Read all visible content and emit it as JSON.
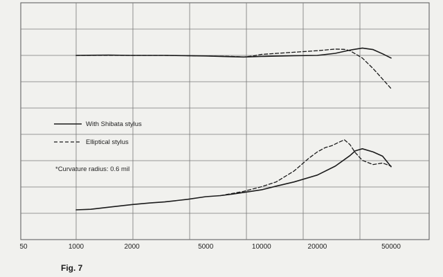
{
  "chart_data": {
    "type": "line",
    "x_scale": "log",
    "xlim": [
      1000,
      50000
    ],
    "grid": true,
    "legend_position": "left",
    "x_tick_labels": [
      {
        "value": 1000,
        "label": "1000"
      },
      {
        "value": 2000,
        "label": "2000"
      },
      {
        "value": 5000,
        "label": "5000"
      },
      {
        "value": 10000,
        "label": "10000"
      },
      {
        "value": 20000,
        "label": "20000"
      },
      {
        "value": 50000,
        "label": "50000"
      }
    ],
    "stray_tick_label": "50",
    "annotation": "*Curvature radius: 0.6 mil",
    "caption": "Fig. 7",
    "series": [
      {
        "name": "With Shibata stylus",
        "style": "solid",
        "group": "upper",
        "points": [
          [
            1000,
            0.0
          ],
          [
            1500,
            0.05
          ],
          [
            2000,
            0.0
          ],
          [
            3000,
            0.0
          ],
          [
            5000,
            -0.1
          ],
          [
            7000,
            -0.25
          ],
          [
            8000,
            -0.3
          ],
          [
            10000,
            -0.2
          ],
          [
            15000,
            -0.05
          ],
          [
            20000,
            0.0
          ],
          [
            25000,
            0.4
          ],
          [
            30000,
            1.0
          ],
          [
            35000,
            1.4
          ],
          [
            40000,
            1.1
          ],
          [
            45000,
            0.3
          ],
          [
            50000,
            -0.5
          ]
        ]
      },
      {
        "name": "",
        "style": "dashed",
        "group": "upper",
        "points": [
          [
            1000,
            0.0
          ],
          [
            2000,
            0.0
          ],
          [
            3000,
            0.0
          ],
          [
            5000,
            -0.1
          ],
          [
            7000,
            -0.2
          ],
          [
            8000,
            -0.3
          ],
          [
            9000,
            -0.1
          ],
          [
            10000,
            0.2
          ],
          [
            15000,
            0.6
          ],
          [
            20000,
            0.9
          ],
          [
            25000,
            1.2
          ],
          [
            28000,
            1.15
          ],
          [
            30000,
            0.9
          ],
          [
            35000,
            -0.5
          ],
          [
            40000,
            -2.5
          ],
          [
            45000,
            -4.5
          ],
          [
            50000,
            -6.3
          ]
        ]
      },
      {
        "name": "With Shibata stylus",
        "style": "solid",
        "group": "lower",
        "points": [
          [
            1000,
            0.0
          ],
          [
            1200,
            0.1
          ],
          [
            1500,
            0.5
          ],
          [
            2000,
            1.0
          ],
          [
            2500,
            1.3
          ],
          [
            3000,
            1.5
          ],
          [
            4000,
            2.0
          ],
          [
            5000,
            2.5
          ],
          [
            6000,
            2.7
          ],
          [
            7000,
            3.0
          ],
          [
            8000,
            3.3
          ],
          [
            10000,
            3.8
          ],
          [
            12000,
            4.5
          ],
          [
            15000,
            5.3
          ],
          [
            20000,
            6.6
          ],
          [
            25000,
            8.3
          ],
          [
            30000,
            10.3
          ],
          [
            32000,
            11.2
          ],
          [
            35000,
            11.6
          ],
          [
            40000,
            11.0
          ],
          [
            45000,
            10.2
          ],
          [
            50000,
            8.2
          ]
        ]
      },
      {
        "name": "Elliptical stylus",
        "style": "dashed",
        "group": "lower",
        "points": [
          [
            6000,
            2.7
          ],
          [
            8000,
            3.5
          ],
          [
            10000,
            4.4
          ],
          [
            12000,
            5.3
          ],
          [
            15000,
            7.4
          ],
          [
            18000,
            9.8
          ],
          [
            20000,
            11.0
          ],
          [
            22000,
            11.8
          ],
          [
            24000,
            12.2
          ],
          [
            26000,
            12.8
          ],
          [
            28000,
            13.3
          ],
          [
            30000,
            12.4
          ],
          [
            32000,
            10.9
          ],
          [
            35000,
            9.4
          ],
          [
            40000,
            8.6
          ],
          [
            45000,
            8.9
          ],
          [
            50000,
            8.3
          ]
        ]
      }
    ]
  }
}
